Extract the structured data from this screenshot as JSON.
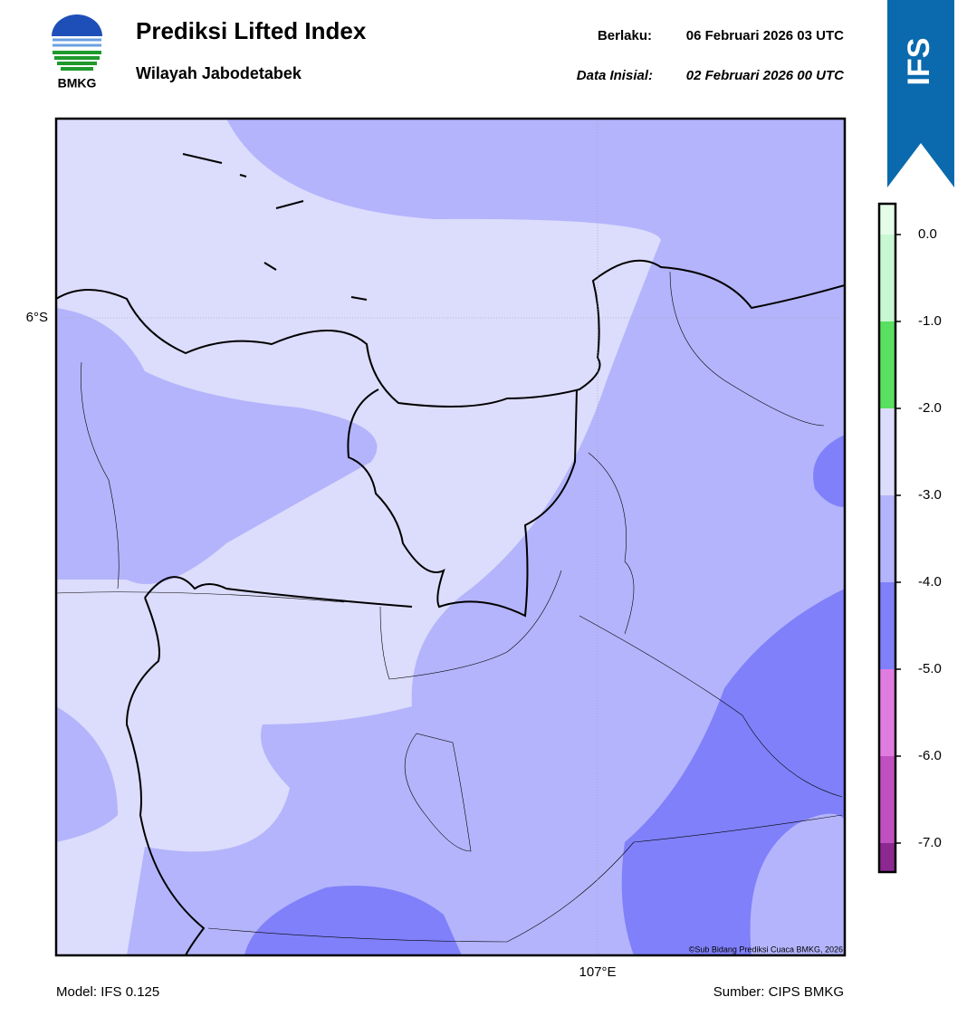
{
  "header": {
    "logo_text": "BMKG",
    "title": "Prediksi Lifted Index",
    "subtitle": "Wilayah Jabodetabek",
    "valid_label": "Berlaku:",
    "valid_time": "06 Februari 2026 03 UTC",
    "init_label": "Data Inisial:",
    "init_time": "02 Februari 2026 00 UTC",
    "badge": "IFS"
  },
  "map": {
    "lat_label": "6°S",
    "lon_label": "107°E",
    "credit": "©Sub Bidang Prediksi Cuaca BMKG, 2026"
  },
  "colorbar": {
    "levels": [
      {
        "label": "0.0",
        "color": "#c8f8d2"
      },
      {
        "label": "-1.0",
        "color": "#5ae060"
      },
      {
        "label": "-2.0",
        "color": "#dcdcfc"
      },
      {
        "label": "-3.0",
        "color": "#b4b4fc"
      },
      {
        "label": "-4.0",
        "color": "#8080fa"
      },
      {
        "label": "-5.0",
        "color": "#e07ce0"
      },
      {
        "label": "-6.0",
        "color": "#c050c0"
      },
      {
        "label": "-7.0",
        "color": "#8c2890"
      }
    ],
    "top_color": "#e4fde8"
  },
  "footer": {
    "model": "Model: IFS 0.125",
    "source": "Sumber: CIPS BMKG"
  }
}
